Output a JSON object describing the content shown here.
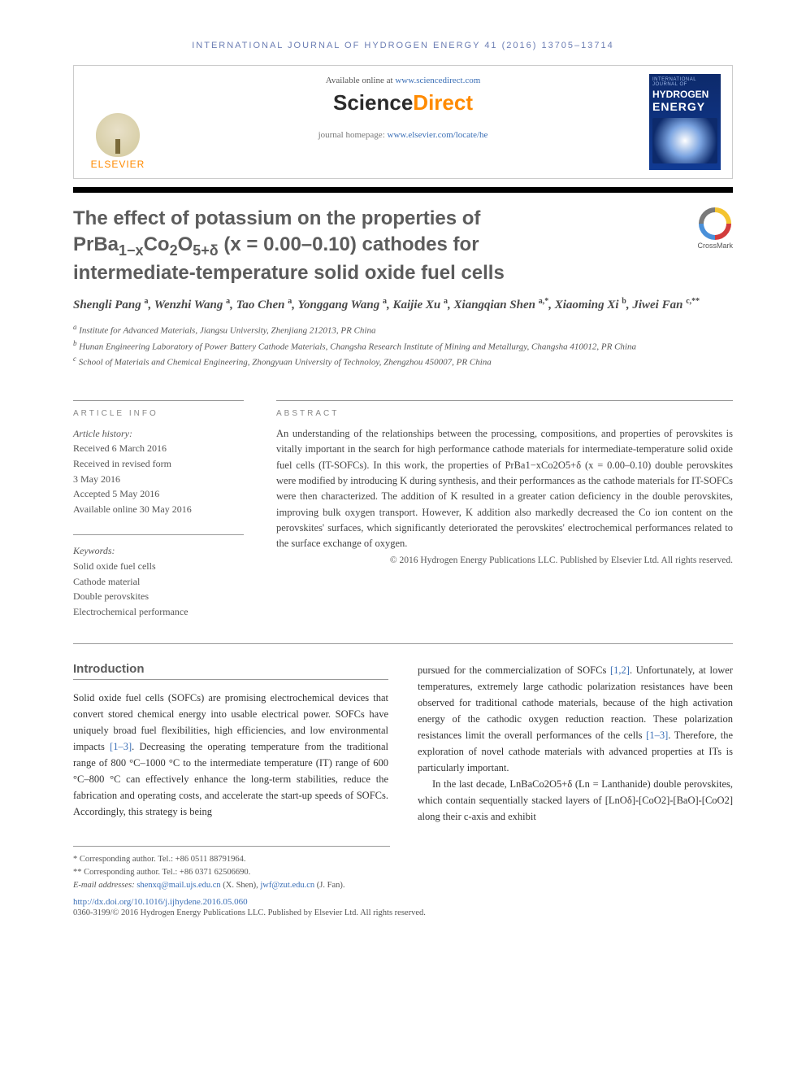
{
  "running_head": "INTERNATIONAL JOURNAL OF HYDROGEN ENERGY 41 (2016) 13705–13714",
  "top_box": {
    "available_prefix": "Available online at ",
    "available_link": "www.sciencedirect.com",
    "sd_left": "Science",
    "sd_right": "Direct",
    "homepage_prefix": "journal homepage: ",
    "homepage_link": "www.elsevier.com/locate/he",
    "elsevier": "ELSEVIER",
    "cover": {
      "top": "INTERNATIONAL JOURNAL OF",
      "t1": "HYDROGEN",
      "t2": "ENERGY"
    }
  },
  "crossmark": "CrossMark",
  "title_parts": {
    "l1": "The effect of potassium on the properties of",
    "l2_a": "PrBa",
    "l2_b": "Co",
    "l2_c": "O",
    "l2_d": " (x = 0.00–0.10) cathodes for",
    "l3": "intermediate-temperature solid oxide fuel cells",
    "sub_1mx": "1−x",
    "sub_2": "2",
    "sub_5pd": "5+δ"
  },
  "authors_html": "Shengli Pang <sup>a</sup>, Wenzhi Wang <sup>a</sup>, Tao Chen <sup>a</sup>, Yonggang Wang <sup>a</sup>, Kaijie Xu <sup>a</sup>, Xiangqian Shen <sup>a,*</sup>, Xiaoming Xi <sup>b</sup>, Jiwei Fan <sup>c,**</sup>",
  "affiliations": {
    "a": "Institute for Advanced Materials, Jiangsu University, Zhenjiang 212013, PR China",
    "b": "Hunan Engineering Laboratory of Power Battery Cathode Materials, Changsha Research Institute of Mining and Metallurgy, Changsha 410012, PR China",
    "c": "School of Materials and Chemical Engineering, Zhongyuan University of Technoloy, Zhengzhou 450007, PR China"
  },
  "labels": {
    "article_info": "ARTICLE INFO",
    "abstract": "ABSTRACT",
    "introduction": "Introduction"
  },
  "history": {
    "heading": "Article history:",
    "received": "Received 6 March 2016",
    "revised1": "Received in revised form",
    "revised2": "3 May 2016",
    "accepted": "Accepted 5 May 2016",
    "online": "Available online 30 May 2016"
  },
  "keywords": {
    "heading": "Keywords:",
    "k1": "Solid oxide fuel cells",
    "k2": "Cathode material",
    "k3": "Double perovskites",
    "k4": "Electrochemical performance"
  },
  "abstract": "An understanding of the relationships between the processing, compositions, and properties of perovskites is vitally important in the search for high performance cathode materials for intermediate-temperature solid oxide fuel cells (IT-SOFCs). In this work, the properties of PrBa1−xCo2O5+δ (x = 0.00–0.10) double perovskites were modified by introducing K during synthesis, and their performances as the cathode materials for IT-SOFCs were then characterized. The addition of K resulted in a greater cation deficiency in the double perovskites, improving bulk oxygen transport. However, K addition also markedly decreased the Co ion content on the perovskites' surfaces, which significantly deteriorated the perovskites' electrochemical performances related to the surface exchange of oxygen.",
  "abstract_copy": "© 2016 Hydrogen Energy Publications LLC. Published by Elsevier Ltd. All rights reserved.",
  "body": {
    "left_p1a": "Solid oxide fuel cells (SOFCs) are promising electrochemical devices that convert stored chemical energy into usable electrical power. SOFCs have uniquely broad fuel flexibilities, high efficiencies, and low environmental impacts ",
    "left_ref1": "[1–3]",
    "left_p1b": ". Decreasing the operating temperature from the traditional range of 800 °C–1000 °C to the intermediate temperature (IT) range of 600 °C–800 °C can effectively enhance the long-term stabilities, reduce the fabrication and operating costs, and accelerate the start-up speeds of SOFCs. Accordingly, this strategy is being",
    "right_p1a": "pursued for the commercialization of SOFCs ",
    "right_ref1": "[1,2]",
    "right_p1b": ". Unfortunately, at lower temperatures, extremely large cathodic polarization resistances have been observed for traditional cathode materials, because of the high activation energy of the cathodic oxygen reduction reaction. These polarization resistances limit the overall performances of the cells ",
    "right_ref2": "[1–3]",
    "right_p1c": ". Therefore, the exploration of novel cathode materials with advanced properties at ITs is particularly important.",
    "right_p2": "In the last decade, LnBaCo2O5+δ (Ln = Lanthanide) double perovskites, which contain sequentially stacked layers of [LnOδ]-[CoO2]-[BaO]-[CoO2] along their c-axis and exhibit"
  },
  "footnotes": {
    "c1": "* Corresponding author. Tel.: +86 0511 88791964.",
    "c2": "** Corresponding author. Tel.: +86 0371 62506690.",
    "emails_prefix": "E-mail addresses: ",
    "email1": "shenxq@mail.ujs.edu.cn",
    "email1_who": " (X. Shen), ",
    "email2": "jwf@zut.edu.cn",
    "email2_who": " (J. Fan)."
  },
  "doi": "http://dx.doi.org/10.1016/j.ijhydene.2016.05.060",
  "bottom_copy": "0360-3199/© 2016 Hydrogen Energy Publications LLC. Published by Elsevier Ltd. All rights reserved.",
  "colors": {
    "link": "#3b6fb6",
    "orange": "#ff8a00",
    "title_gray": "#5c5c5c",
    "running_head": "#6b7db3"
  }
}
